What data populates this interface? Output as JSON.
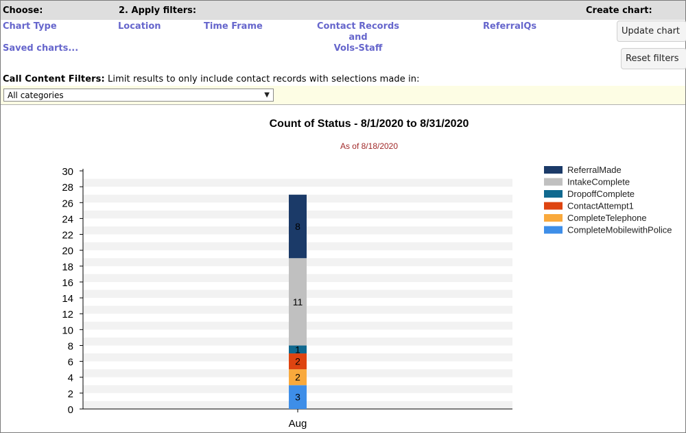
{
  "header": {
    "choose_label": "Choose:",
    "apply_filters_label": "2. Apply filters:",
    "create_chart_label": "Create chart:"
  },
  "links": {
    "chart_type": "Chart Type",
    "saved_charts": "Saved charts...",
    "location": "Location",
    "time_frame": "Time Frame",
    "contact_records_line1": "Contact Records",
    "contact_records_line2": "and",
    "contact_records_line3": "Vols-Staff",
    "referralqs": "ReferralQs"
  },
  "buttons": {
    "update_chart": "Update chart",
    "reset_filters": "Reset filters"
  },
  "call_content": {
    "label": "Call Content Filters:",
    "description": "Limit results to only include contact records with selections made in:",
    "select_value": "All categories"
  },
  "colors": {
    "ReferralMade": "#1b3a68",
    "IntakeComplete": "#c0c0c0",
    "DropoffComplete": "#10698f",
    "ContactAttempt1": "#de4410",
    "CompleteTelephone": "#f9a93c",
    "CompleteMobilewithPolice": "#3e8ee8",
    "subtitle": "#a02828",
    "link": "#6666cc"
  },
  "chart_data": {
    "type": "bar",
    "stacked": true,
    "title": "Count of Status - 8/1/2020 to 8/31/2020",
    "subtitle": "As of 8/18/2020",
    "categories": [
      "Aug"
    ],
    "ylim": [
      0,
      30
    ],
    "yticks": [
      0,
      2,
      4,
      6,
      8,
      10,
      12,
      14,
      16,
      18,
      20,
      22,
      24,
      26,
      28,
      30
    ],
    "grid": "alternating horizontal bands",
    "legend_position": "right",
    "series": [
      {
        "name": "CompleteMobilewithPolice",
        "values": [
          3
        ]
      },
      {
        "name": "CompleteTelephone",
        "values": [
          2
        ]
      },
      {
        "name": "ContactAttempt1",
        "values": [
          2
        ]
      },
      {
        "name": "DropoffComplete",
        "values": [
          1
        ]
      },
      {
        "name": "IntakeComplete",
        "values": [
          11
        ]
      },
      {
        "name": "ReferralMade",
        "values": [
          8
        ]
      }
    ],
    "legend_order": [
      "ReferralMade",
      "IntakeComplete",
      "DropoffComplete",
      "ContactAttempt1",
      "CompleteTelephone",
      "CompleteMobilewithPolice"
    ]
  }
}
